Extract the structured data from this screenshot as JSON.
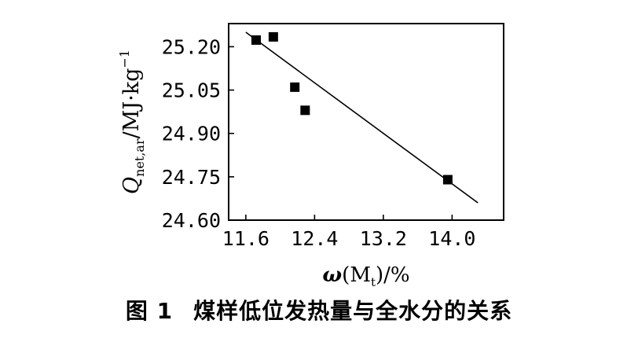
{
  "chart_data": {
    "type": "scatter",
    "x": [
      11.72,
      11.92,
      12.17,
      12.29,
      13.95
    ],
    "y": [
      25.223,
      25.234,
      25.06,
      24.98,
      24.74
    ],
    "trendline": {
      "x": [
        11.6,
        14.3
      ],
      "y": [
        25.25,
        24.66
      ]
    },
    "xlim": [
      11.4,
      14.6
    ],
    "ylim": [
      24.6,
      25.28
    ],
    "xticks": [
      "11.6",
      "12.4",
      "13.2",
      "14.0"
    ],
    "xtick_values": [
      11.6,
      12.4,
      13.2,
      14.0
    ],
    "yticks": [
      "25.20",
      "25.05",
      "24.90",
      "24.75",
      "24.60"
    ],
    "ytick_values": [
      25.2,
      25.05,
      24.9,
      24.75,
      24.6
    ],
    "xlabel": {
      "main": "ω",
      "paren_open": "(",
      "var": "M",
      "sub": "t",
      "paren_close": ")",
      "unit": "/%"
    },
    "ylabel": {
      "main": "Q",
      "sub": "net,ar",
      "unit": "/MJ·kg",
      "sup": "−1"
    },
    "grid": false,
    "marker_color": "#000000"
  },
  "caption": {
    "number": "图 1",
    "text": "煤样低位发热量与全水分的关系"
  }
}
